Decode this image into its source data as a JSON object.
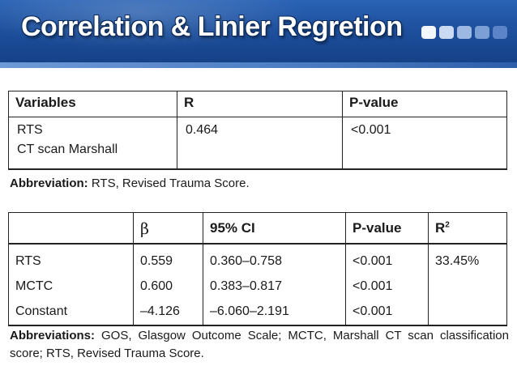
{
  "header": {
    "title": "Correlation & Linier Regretion"
  },
  "table1": {
    "headers": [
      "Variables",
      "R",
      "P-value"
    ],
    "row": {
      "variables": [
        "RTS",
        "CT scan Marshall"
      ],
      "r": "0.464",
      "p_value": "<0.001"
    },
    "note_label": "Abbreviation:",
    "note_text": "RTS, Revised Trauma Score."
  },
  "table2": {
    "headers": {
      "blank": "",
      "beta": "β",
      "ci": "95% CI",
      "p_value": "P-value",
      "r2_base": "R",
      "r2_sup": "2"
    },
    "rows": [
      {
        "label": "RTS",
        "beta": "0.559",
        "ci": "0.360–0.758",
        "p": "<0.001"
      },
      {
        "label": "MCTC",
        "beta": "0.600",
        "ci": "0.383–0.817",
        "p": "<0.001"
      },
      {
        "label": "Constant",
        "beta": "–4.126",
        "ci": "–6.060–2.191",
        "p": "<0.001"
      }
    ],
    "r2_value": "33.45%",
    "note_label": "Abbreviations:",
    "note_text": "GOS, Glasgow Outcome Scale; MCTC, Marshall CT scan classification score; RTS, Revised Trauma Score."
  }
}
